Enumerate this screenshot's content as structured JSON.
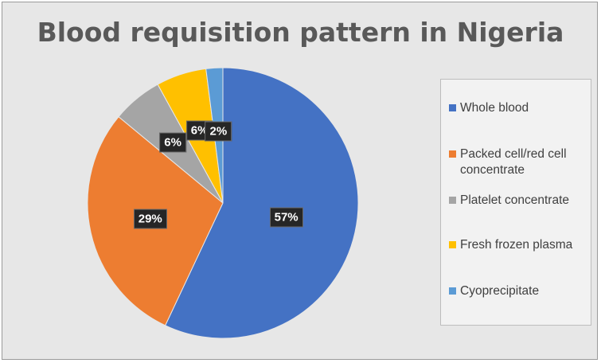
{
  "chart_data": {
    "type": "pie",
    "title": "Blood requisition pattern in Nigeria",
    "legend_position": "right",
    "slices": [
      {
        "name": "Whole blood",
        "value": 57,
        "label": "57%",
        "color": "#4472c4"
      },
      {
        "name": "Packed cell/red cell concentrate",
        "value": 29,
        "label": "29%",
        "color": "#ed7d31"
      },
      {
        "name": "Platelet concentrate",
        "value": 6,
        "label": "6%",
        "color": "#a5a5a5"
      },
      {
        "name": "Fresh frozen plasma",
        "value": 6,
        "label": "6%",
        "color": "#ffc000"
      },
      {
        "name": "Cyoprecipitate",
        "value": 2,
        "label": "2%",
        "color": "#5b9bd5"
      }
    ]
  }
}
